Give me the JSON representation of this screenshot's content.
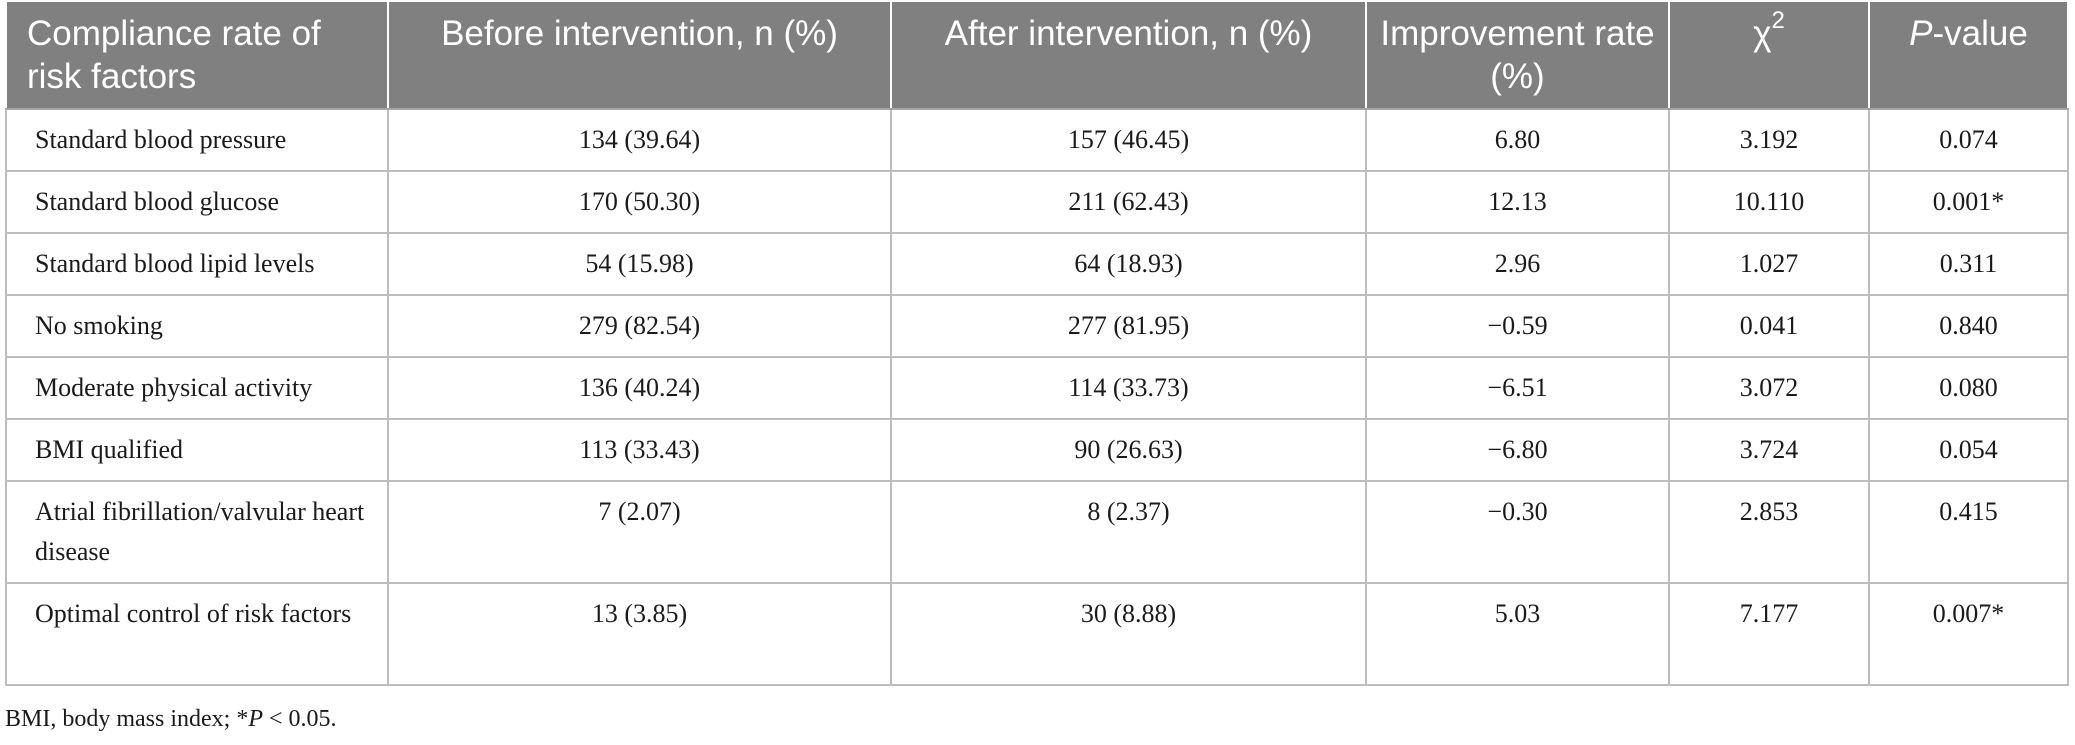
{
  "table": {
    "headers": {
      "col1": "Compliance rate of risk factors",
      "col2": "Before intervention, n (%)",
      "col3": "After intervention, n (%)",
      "col4": "Improvement rate (%)",
      "col5_base": "χ",
      "col5_sup": "2",
      "col6_italic": "P",
      "col6_rest": "-value"
    },
    "rows": [
      {
        "factor": "Standard blood pressure",
        "before": "134 (39.64)",
        "after": "157 (46.45)",
        "improvement": "6.80",
        "chi2": "3.192",
        "p": "0.074"
      },
      {
        "factor": "Standard blood glucose",
        "before": "170 (50.30)",
        "after": "211 (62.43)",
        "improvement": "12.13",
        "chi2": "10.110",
        "p": "0.001*"
      },
      {
        "factor": "Standard blood lipid levels",
        "before": "54 (15.98)",
        "after": "64 (18.93)",
        "improvement": "2.96",
        "chi2": "1.027",
        "p": "0.311"
      },
      {
        "factor": "No smoking",
        "before": "279 (82.54)",
        "after": "277 (81.95)",
        "improvement": "−0.59",
        "chi2": "0.041",
        "p": "0.840"
      },
      {
        "factor": "Moderate physical activity",
        "before": "136 (40.24)",
        "after": "114 (33.73)",
        "improvement": "−6.51",
        "chi2": "3.072",
        "p": "0.080"
      },
      {
        "factor": "BMI qualified",
        "before": "113 (33.43)",
        "after": "90 (26.63)",
        "improvement": "−6.80",
        "chi2": "3.724",
        "p": "0.054"
      },
      {
        "factor": "Atrial fibrillation/valvular heart disease",
        "before": "7 (2.07)",
        "after": "8 (2.37)",
        "improvement": "−0.30",
        "chi2": "2.853",
        "p": "0.415"
      },
      {
        "factor": "Optimal control of risk factors",
        "before": "13 (3.85)",
        "after": "30 (8.88)",
        "improvement": "5.03",
        "chi2": "7.177",
        "p": "0.007*"
      }
    ]
  },
  "footnote": {
    "prefix": "BMI, body mass index; *",
    "italic": "P",
    "suffix": " < 0.05."
  },
  "colors": {
    "header_bg": "#808080",
    "header_text": "#ffffff",
    "grid": "#bdbdbd"
  }
}
